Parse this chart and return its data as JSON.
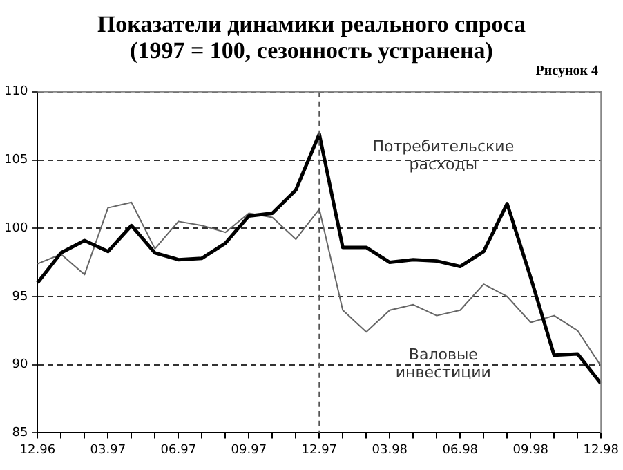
{
  "chart_data": {
    "type": "line",
    "title": "Показатели динамики реального спроса",
    "subtitle": "(1997 = 100, сезонность устранена)",
    "annotations": [
      "Рисунок 4"
    ],
    "categories": [
      "12.96",
      null,
      null,
      "03.97",
      null,
      null,
      "06.97",
      null,
      null,
      "09.97",
      null,
      null,
      "12.97",
      null,
      null,
      "03.98",
      null,
      null,
      "06.98",
      null,
      null,
      "09.98",
      null,
      null,
      "12.98"
    ],
    "series": [
      {
        "name": "Потребительские расходы",
        "color": "#000000",
        "values": [
          96.0,
          98.2,
          99.1,
          98.3,
          100.2,
          98.2,
          97.7,
          97.8,
          98.9,
          100.9,
          101.1,
          102.8,
          106.9,
          98.6,
          98.6,
          97.5,
          97.7,
          97.6,
          97.2,
          98.3,
          101.8,
          96.4,
          90.7,
          90.8,
          88.6
        ]
      },
      {
        "name": "Валовые инвестиции",
        "color": "#666666",
        "values": [
          97.4,
          98.1,
          96.6,
          101.5,
          101.9,
          98.5,
          100.5,
          100.2,
          99.7,
          101.1,
          100.8,
          99.2,
          101.4,
          94.0,
          92.4,
          94.0,
          94.4,
          93.6,
          94.0,
          95.9,
          95.0,
          93.1,
          93.6,
          92.5,
          89.9
        ]
      }
    ],
    "ylim": [
      85,
      110
    ],
    "yticks": [
      85,
      90,
      95,
      100,
      105,
      110
    ],
    "grid": "y",
    "legend": false,
    "marker": "none",
    "line_style": "solid",
    "ref_lines": [
      {
        "axis": "x",
        "value": "12.97",
        "line_style": "dashed",
        "color": "#555555"
      }
    ]
  }
}
